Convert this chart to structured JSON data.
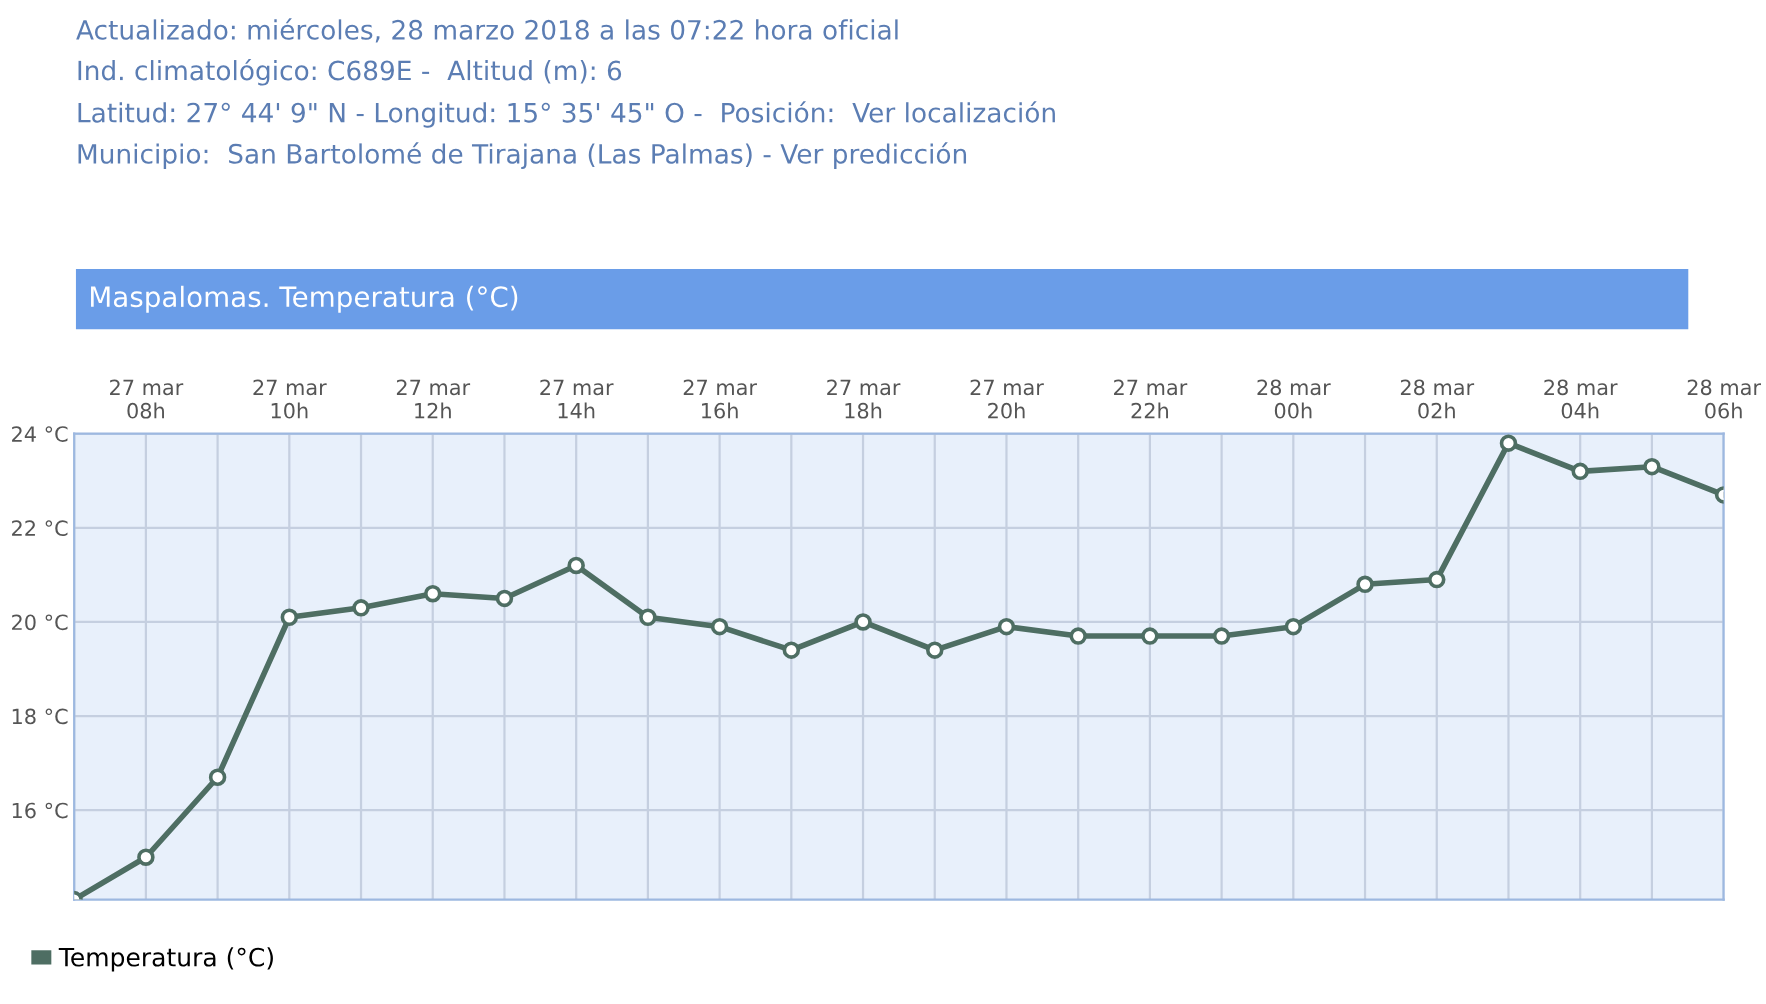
{
  "chart_data": {
    "type": "line",
    "title": "Maspalomas. Temperatura (°C)",
    "annotations": [
      "Actualizado: miércoles, 28 marzo 2018 a las 07:22 hora oficial",
      "Ind. climatológico: C689E -  Altitud (m): 6",
      "Latitud: 27° 44' 9\" N - Longitud: 15° 35' 45\" O -  Posición:  Ver localización",
      "Municipio:  San Bartolomé de Tirajana (Las Palmas) - Ver predicción"
    ],
    "categories": [
      null,
      "27 mar\n08h",
      null,
      "27 mar\n10h",
      null,
      "27 mar\n12h",
      null,
      "27 mar\n14h",
      null,
      "27 mar\n16h",
      null,
      "27 mar\n18h",
      null,
      "27 mar\n20h",
      null,
      "27 mar\n22h",
      null,
      "28 mar\n00h",
      null,
      "28 mar\n02h",
      null,
      "28 mar\n04h",
      null,
      "28 mar\n06h"
    ],
    "series": [
      {
        "name": "Temperatura (°C)",
        "color": "#4e6e63",
        "values": [
          14.1,
          15.0,
          16.7,
          20.1,
          20.3,
          20.6,
          20.5,
          21.2,
          20.1,
          19.9,
          19.4,
          20.0,
          19.4,
          19.9,
          19.7,
          19.7,
          19.7,
          19.9,
          20.8,
          20.9,
          23.8,
          23.2,
          23.3,
          22.7
        ]
      }
    ],
    "ylim": [
      14.1,
      24
    ],
    "yticks": [
      {
        "value": 16,
        "label": "16 °C"
      },
      {
        "value": 18,
        "label": "18 °C"
      },
      {
        "value": 20,
        "label": "20 °C"
      },
      {
        "value": 22,
        "label": "22 °C"
      },
      {
        "value": 24,
        "label": "24 °C"
      }
    ],
    "grid": true,
    "legend": "bottom left",
    "marker": "circle",
    "line_style": "solid"
  }
}
